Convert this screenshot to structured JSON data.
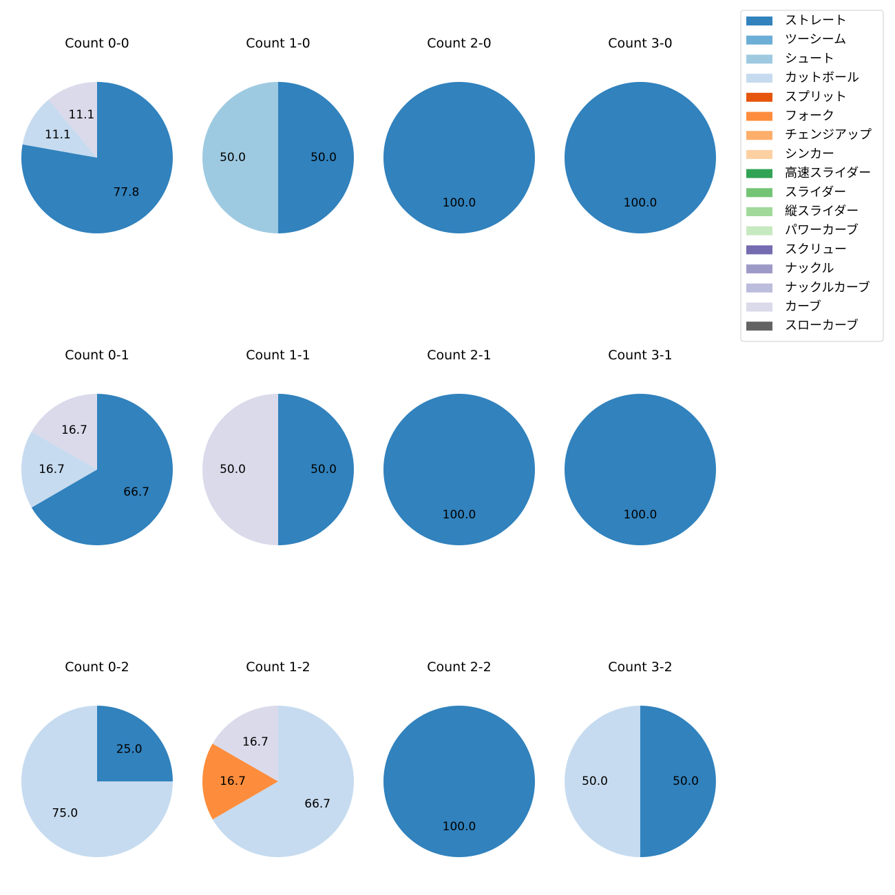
{
  "chart_data": {
    "type": "pie",
    "legend": {
      "placement": "top-right",
      "entries": [
        {
          "name": "ストレート",
          "color": "#3182bd"
        },
        {
          "name": "ツーシーム",
          "color": "#6baed6"
        },
        {
          "name": "シュート",
          "color": "#9ecae1"
        },
        {
          "name": "カットボール",
          "color": "#c6dbef"
        },
        {
          "name": "スプリット",
          "color": "#e6550d"
        },
        {
          "name": "フォーク",
          "color": "#fd8d3c"
        },
        {
          "name": "チェンジアップ",
          "color": "#fdae6b"
        },
        {
          "name": "シンカー",
          "color": "#fdd0a2"
        },
        {
          "name": "高速スライダー",
          "color": "#31a354"
        },
        {
          "name": "スライダー",
          "color": "#74c476"
        },
        {
          "name": "縦スライダー",
          "color": "#a1d99b"
        },
        {
          "name": "パワーカーブ",
          "color": "#c7e9c0"
        },
        {
          "name": "スクリュー",
          "color": "#756bb1"
        },
        {
          "name": "ナックル",
          "color": "#9e9ac8"
        },
        {
          "name": "ナックルカーブ",
          "color": "#bcbddc"
        },
        {
          "name": "カーブ",
          "color": "#dadaeb"
        },
        {
          "name": "スローカーブ",
          "color": "#636363"
        }
      ]
    },
    "pies": [
      {
        "title": "Count 0-0",
        "slices": [
          {
            "pitch": "ストレート",
            "value": 77.8,
            "label": "77.8"
          },
          {
            "pitch": "カットボール",
            "value": 11.1,
            "label": "11.1"
          },
          {
            "pitch": "カーブ",
            "value": 11.1,
            "label": "11.1"
          }
        ]
      },
      {
        "title": "Count 1-0",
        "slices": [
          {
            "pitch": "ストレート",
            "value": 50.0,
            "label": "50.0"
          },
          {
            "pitch": "シュート",
            "value": 50.0,
            "label": "50.0"
          }
        ]
      },
      {
        "title": "Count 2-0",
        "slices": [
          {
            "pitch": "ストレート",
            "value": 100.0,
            "label": "100.0"
          }
        ]
      },
      {
        "title": "Count 3-0",
        "slices": [
          {
            "pitch": "ストレート",
            "value": 100.0,
            "label": "100.0"
          }
        ]
      },
      {
        "title": "Count 0-1",
        "slices": [
          {
            "pitch": "ストレート",
            "value": 66.7,
            "label": "66.7"
          },
          {
            "pitch": "カットボール",
            "value": 16.7,
            "label": "16.7"
          },
          {
            "pitch": "カーブ",
            "value": 16.7,
            "label": "16.7"
          }
        ]
      },
      {
        "title": "Count 1-1",
        "slices": [
          {
            "pitch": "ストレート",
            "value": 50.0,
            "label": "50.0"
          },
          {
            "pitch": "カーブ",
            "value": 50.0,
            "label": "50.0"
          }
        ]
      },
      {
        "title": "Count 2-1",
        "slices": [
          {
            "pitch": "ストレート",
            "value": 100.0,
            "label": "100.0"
          }
        ]
      },
      {
        "title": "Count 3-1",
        "slices": [
          {
            "pitch": "ストレート",
            "value": 100.0,
            "label": "100.0"
          }
        ]
      },
      {
        "title": "Count 0-2",
        "slices": [
          {
            "pitch": "ストレート",
            "value": 25.0,
            "label": "25.0"
          },
          {
            "pitch": "カットボール",
            "value": 75.0,
            "label": "75.0"
          }
        ]
      },
      {
        "title": "Count 1-2",
        "slices": [
          {
            "pitch": "カットボール",
            "value": 66.7,
            "label": "66.7"
          },
          {
            "pitch": "フォーク",
            "value": 16.7,
            "label": "16.7"
          },
          {
            "pitch": "カーブ",
            "value": 16.7,
            "label": "16.7"
          }
        ]
      },
      {
        "title": "Count 2-2",
        "slices": [
          {
            "pitch": "ストレート",
            "value": 100.0,
            "label": "100.0"
          }
        ]
      },
      {
        "title": "Count 3-2",
        "slices": [
          {
            "pitch": "ストレート",
            "value": 50.0,
            "label": "50.0"
          },
          {
            "pitch": "カットボール",
            "value": 50.0,
            "label": "50.0"
          }
        ]
      }
    ]
  }
}
